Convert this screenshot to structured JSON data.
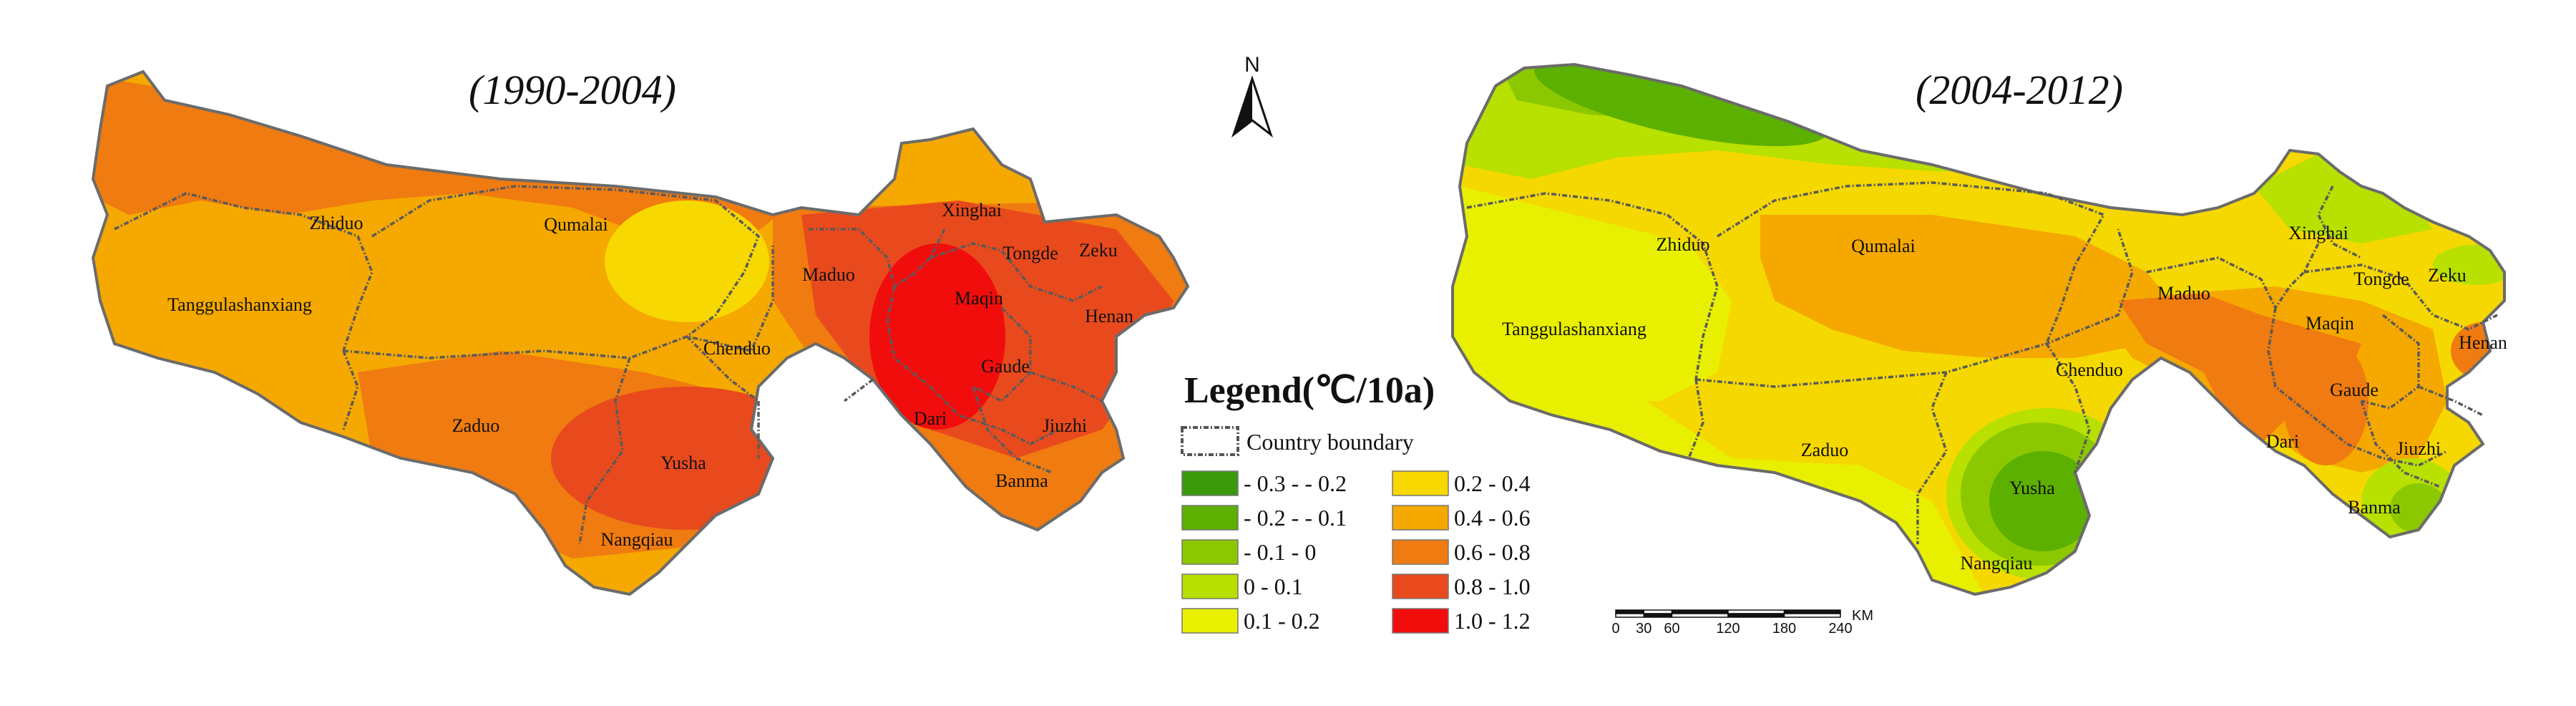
{
  "maps": [
    {
      "title": "(1990-2004)",
      "counties": [
        "Zhiduo",
        "Qumalai",
        "Tanggulashanxiang",
        "Chenduo",
        "Maduo",
        "Xinghai",
        "Tongde",
        "Zeku",
        "Maqin",
        "Henan",
        "Gaude",
        "Dari",
        "Jiuzhi",
        "Banma",
        "Zaduo",
        "Yusha",
        "Nangqiau"
      ],
      "zones": [
        {
          "range": "0.4 - 0.6",
          "color": "#f5a800"
        },
        {
          "range": "0.6 - 0.8",
          "color": "#f07b10"
        },
        {
          "range": "0.8 - 1.0",
          "color": "#e84a1d"
        },
        {
          "range": "1.0 - 1.2",
          "color": "#f20d0d"
        },
        {
          "range": "0.2 - 0.4",
          "color": "#f7d800"
        }
      ]
    },
    {
      "title": "(2004-2012)",
      "counties": [
        "Zhiduo",
        "Qumalai",
        "Tanggulashanxiang",
        "Chenduo",
        "Maduo",
        "Xinghai",
        "Tongde",
        "Zeku",
        "Maqin",
        "Henan",
        "Gaude",
        "Dari",
        "Jiuzhi",
        "Banma",
        "Zaduo",
        "Yusha",
        "Nangqiau"
      ],
      "zones": [
        {
          "range": "0.1 - 0.2",
          "color": "#e8f000"
        },
        {
          "range": "0.2 - 0.4",
          "color": "#f5d800"
        },
        {
          "range": "0.4 - 0.6",
          "color": "#f5a800"
        },
        {
          "range": "0.6 - 0.8",
          "color": "#f07b10"
        },
        {
          "range": "0 - 0.1",
          "color": "#b8e000"
        },
        {
          "range": "- 0.1 - 0",
          "color": "#8cc800"
        },
        {
          "range": "- 0.2 - - 0.1",
          "color": "#5cb000"
        }
      ]
    }
  ],
  "north_arrow": {
    "label": "N"
  },
  "legend": {
    "title": "Legend(℃/10a)",
    "boundary_label": "Country boundary",
    "classes": [
      {
        "label": "- 0.3 - - 0.2",
        "color": "#3a9a0a"
      },
      {
        "label": "- 0.2 - - 0.1",
        "color": "#5cb000"
      },
      {
        "label": "- 0.1 - 0",
        "color": "#8cc800"
      },
      {
        "label": "0 - 0.1",
        "color": "#b8e000"
      },
      {
        "label": "0.1 - 0.2",
        "color": "#e8f000"
      },
      {
        "label": "0.2 - 0.4",
        "color": "#f7d800"
      },
      {
        "label": "0.4 - 0.6",
        "color": "#f5a800"
      },
      {
        "label": "0.6 - 0.8",
        "color": "#f07b10"
      },
      {
        "label": "0.8 - 1.0",
        "color": "#e84a1d"
      },
      {
        "label": "1.0 - 1.2",
        "color": "#f20d0d"
      }
    ]
  },
  "scale_bar": {
    "ticks": [
      "0",
      "30",
      "60",
      "120",
      "180",
      "240"
    ],
    "unit": "KM"
  }
}
